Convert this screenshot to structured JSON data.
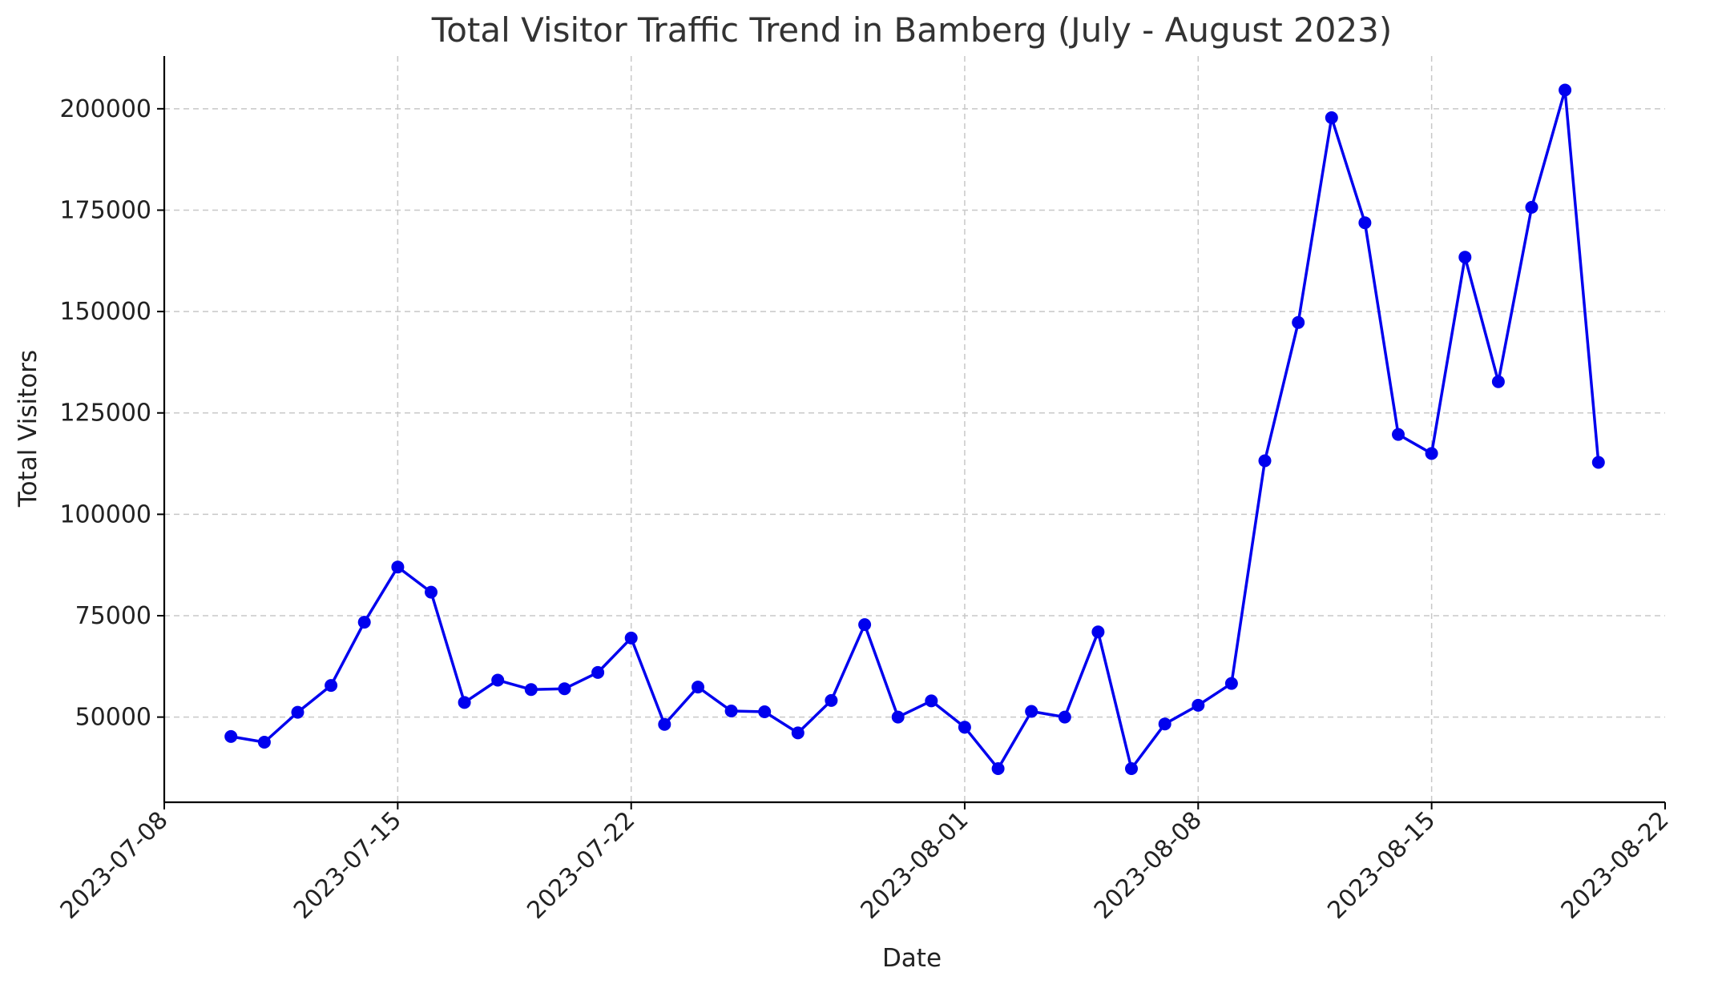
{
  "chart_data": {
    "type": "line",
    "title": "Total Visitor Traffic Trend in Bamberg (July - August 2023)",
    "xlabel": "Date",
    "ylabel": "Total Visitors",
    "x_tick_labels": [
      "2023-07-08",
      "2023-07-15",
      "2023-07-22",
      "2023-08-01",
      "2023-08-08",
      "2023-08-15",
      "2023-08-22"
    ],
    "y_tick_labels": [
      "50000",
      "75000",
      "100000",
      "125000",
      "150000",
      "175000",
      "200000"
    ],
    "y_ticks": [
      50000,
      75000,
      100000,
      125000,
      150000,
      175000,
      200000
    ],
    "xlim": [
      "2023-07-08",
      "2023-08-22"
    ],
    "ylim": [
      29000,
      213000
    ],
    "grid": true,
    "line_color": "#0000ee",
    "series": [
      {
        "x": [
          "2023-07-10",
          "2023-07-11",
          "2023-07-12",
          "2023-07-13",
          "2023-07-14",
          "2023-07-15",
          "2023-07-16",
          "2023-07-17",
          "2023-07-18",
          "2023-07-19",
          "2023-07-20",
          "2023-07-21",
          "2023-07-22",
          "2023-07-23",
          "2023-07-24",
          "2023-07-25",
          "2023-07-26",
          "2023-07-27",
          "2023-07-28",
          "2023-07-29",
          "2023-07-30",
          "2023-07-31",
          "2023-08-01",
          "2023-08-02",
          "2023-08-03",
          "2023-08-04",
          "2023-08-05",
          "2023-08-06",
          "2023-08-07",
          "2023-08-08",
          "2023-08-09",
          "2023-08-10",
          "2023-08-11",
          "2023-08-12",
          "2023-08-13",
          "2023-08-14",
          "2023-08-15",
          "2023-08-16",
          "2023-08-17",
          "2023-08-18",
          "2023-08-19",
          "2023-08-20"
        ],
        "values": [
          45200,
          43800,
          51200,
          57800,
          73400,
          87000,
          80800,
          53600,
          59100,
          56800,
          57000,
          61000,
          69500,
          48200,
          57400,
          51500,
          51300,
          46100,
          54100,
          72800,
          50000,
          54000,
          47500,
          37300,
          51400,
          50000,
          71000,
          37300,
          48300,
          52900,
          58300,
          113200,
          147300,
          197800,
          171900,
          119700,
          115000,
          163400,
          132700,
          175700,
          204600,
          112800
        ]
      }
    ]
  }
}
